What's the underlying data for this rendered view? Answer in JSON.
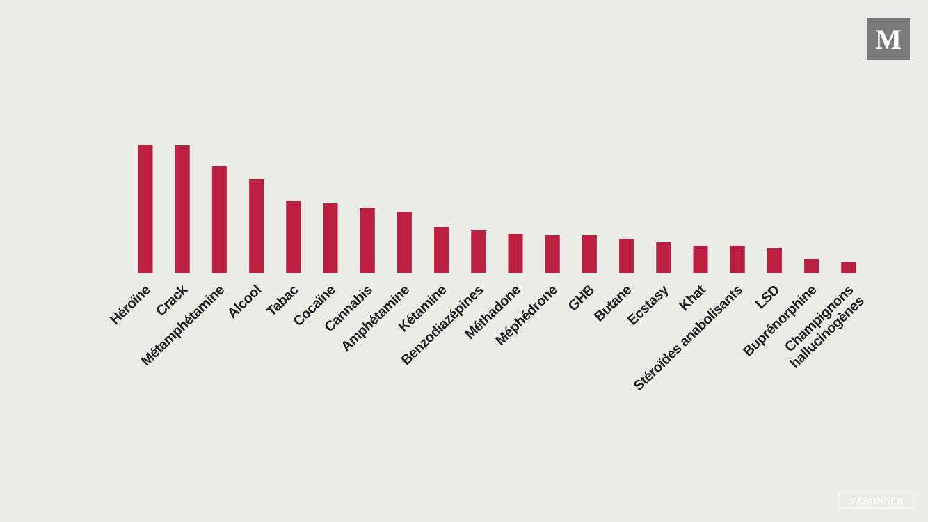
{
  "chart_data": {
    "type": "bar",
    "categories": [
      "Héroïne",
      "Crack",
      "Métamphétamine",
      "Alcool",
      "Tabac",
      "Cocaïne",
      "Cannabis",
      "Amphétamine",
      "Kétamine",
      "Benzodiazépines",
      "Méthadone",
      "Méphédrone",
      "GHB",
      "Butane",
      "Ecstasy",
      "Khat",
      "Stéroïdes anabolisants",
      "LSD",
      "Buprénorphine",
      "Champignons\nhallucinogènes"
    ],
    "values": [
      184,
      183,
      153,
      135,
      103,
      100,
      93,
      88,
      66,
      61,
      56,
      54,
      54,
      49,
      44,
      39,
      39,
      35,
      20,
      16
    ],
    "color": "#bb1f40"
  },
  "logo": "M",
  "subscribe_button": "S'ABONNER"
}
